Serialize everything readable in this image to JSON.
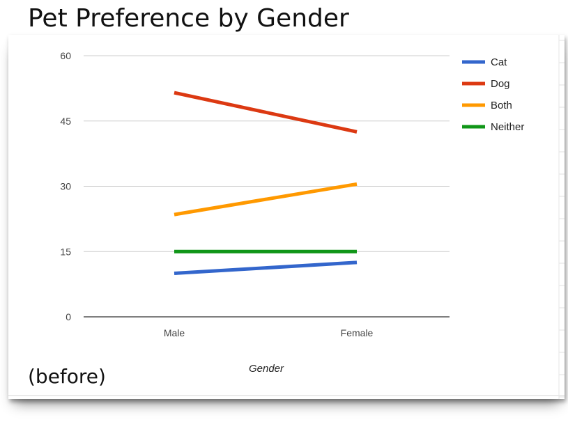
{
  "slide": {
    "title": "Pet Preference by Gender",
    "caption": "(before)"
  },
  "chart_data": {
    "type": "line",
    "title": "",
    "xlabel": "Gender",
    "ylabel": "",
    "categories": [
      "Male",
      "Female"
    ],
    "ylim": [
      0,
      60
    ],
    "yticks": [
      0,
      15,
      30,
      45,
      60
    ],
    "grid": true,
    "legend_position": "right",
    "series": [
      {
        "name": "Cat",
        "color": "#3366cc",
        "values": [
          10,
          12.5
        ]
      },
      {
        "name": "Dog",
        "color": "#dc3912",
        "values": [
          51.5,
          42.5
        ]
      },
      {
        "name": "Both",
        "color": "#ff9900",
        "values": [
          23.5,
          30.5
        ]
      },
      {
        "name": "Neither",
        "color": "#109618",
        "values": [
          15,
          15
        ]
      }
    ]
  }
}
